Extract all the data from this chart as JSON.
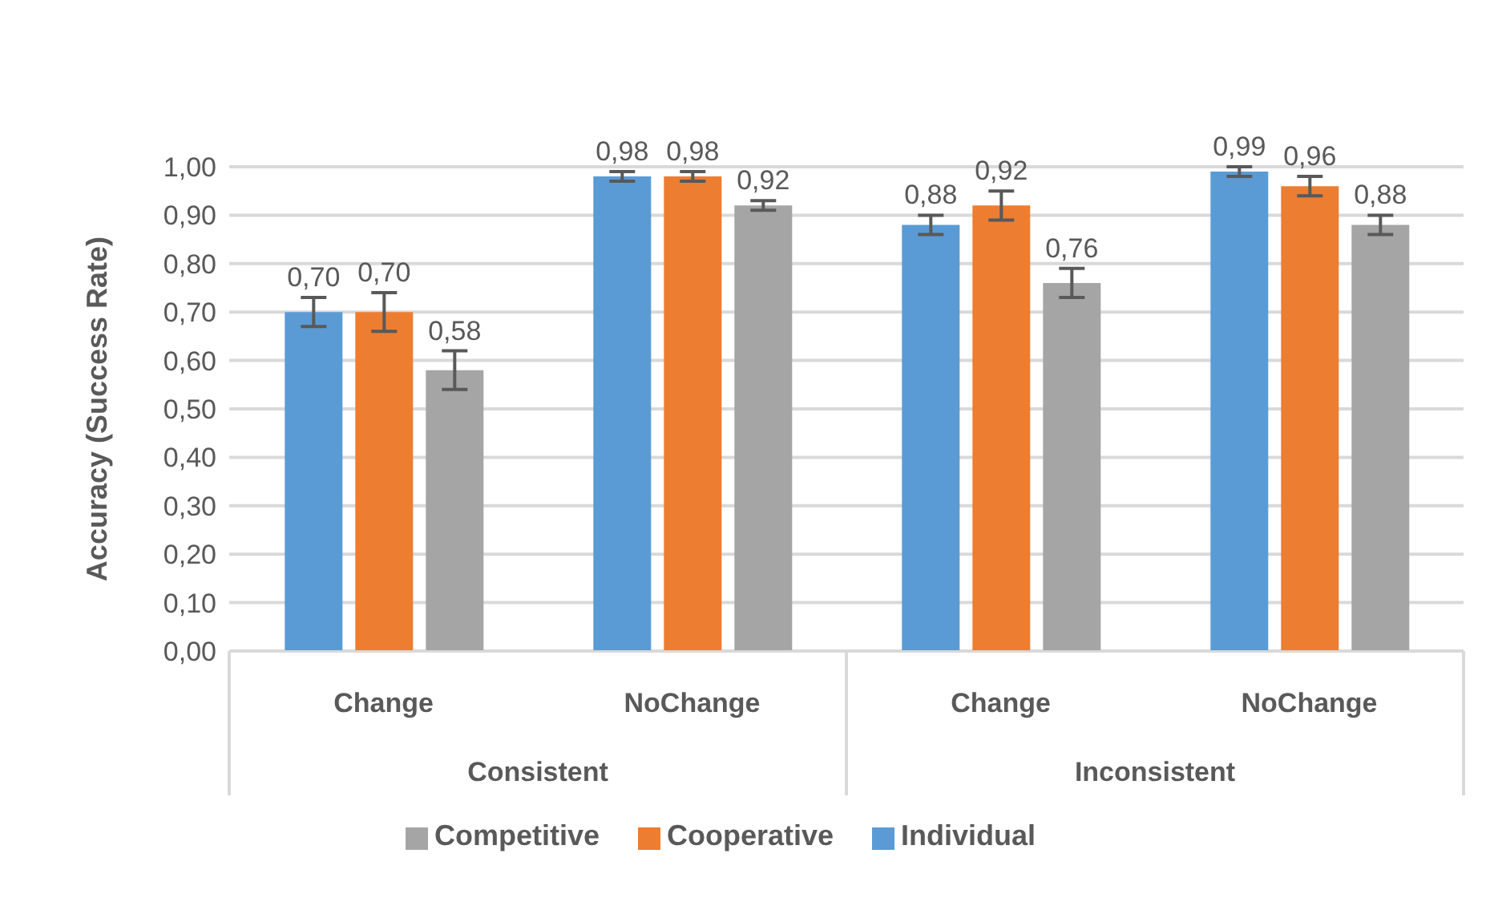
{
  "chart_data": {
    "type": "bar",
    "ylabel": "Accuracy (Success Rate)",
    "categories": [
      "Change",
      "NoChange",
      "Change",
      "NoChange"
    ],
    "annotations": [
      "Consistent",
      "Inconsistent"
    ],
    "series": [
      {
        "name": "Individual",
        "color": "#5b9bd5",
        "values": [
          0.7,
          0.98,
          0.88,
          0.99
        ],
        "errors": [
          0.03,
          0.01,
          0.02,
          0.01
        ],
        "value_labels": [
          "0,70",
          "0,98",
          "0,88",
          "0,99"
        ]
      },
      {
        "name": "Cooperative",
        "color": "#ed7d31",
        "values": [
          0.7,
          0.98,
          0.92,
          0.96
        ],
        "errors": [
          0.04,
          0.01,
          0.03,
          0.02
        ],
        "value_labels": [
          "0,70",
          "0,98",
          "0,92",
          "0,96"
        ]
      },
      {
        "name": "Competitive",
        "color": "#a5a5a5",
        "values": [
          0.58,
          0.92,
          0.76,
          0.88
        ],
        "errors": [
          0.04,
          0.01,
          0.03,
          0.02
        ],
        "value_labels": [
          "0,58",
          "0,92",
          "0,76",
          "0,88"
        ]
      }
    ],
    "ylim": [
      0,
      1
    ],
    "yticks": [
      {
        "value": 0,
        "label": "0,00"
      },
      {
        "value": 0.1,
        "label": "0,10"
      },
      {
        "value": 0.2,
        "label": "0,20"
      },
      {
        "value": 0.3,
        "label": "0,30"
      },
      {
        "value": 0.4,
        "label": "0,40"
      },
      {
        "value": 0.5,
        "label": "0,50"
      },
      {
        "value": 0.6,
        "label": "0,60"
      },
      {
        "value": 0.7,
        "label": "0,70"
      },
      {
        "value": 0.8,
        "label": "0,80"
      },
      {
        "value": 0.9,
        "label": "0,90"
      },
      {
        "value": 1,
        "label": "1,00"
      }
    ],
    "grid": "y",
    "legend": "bottom"
  }
}
